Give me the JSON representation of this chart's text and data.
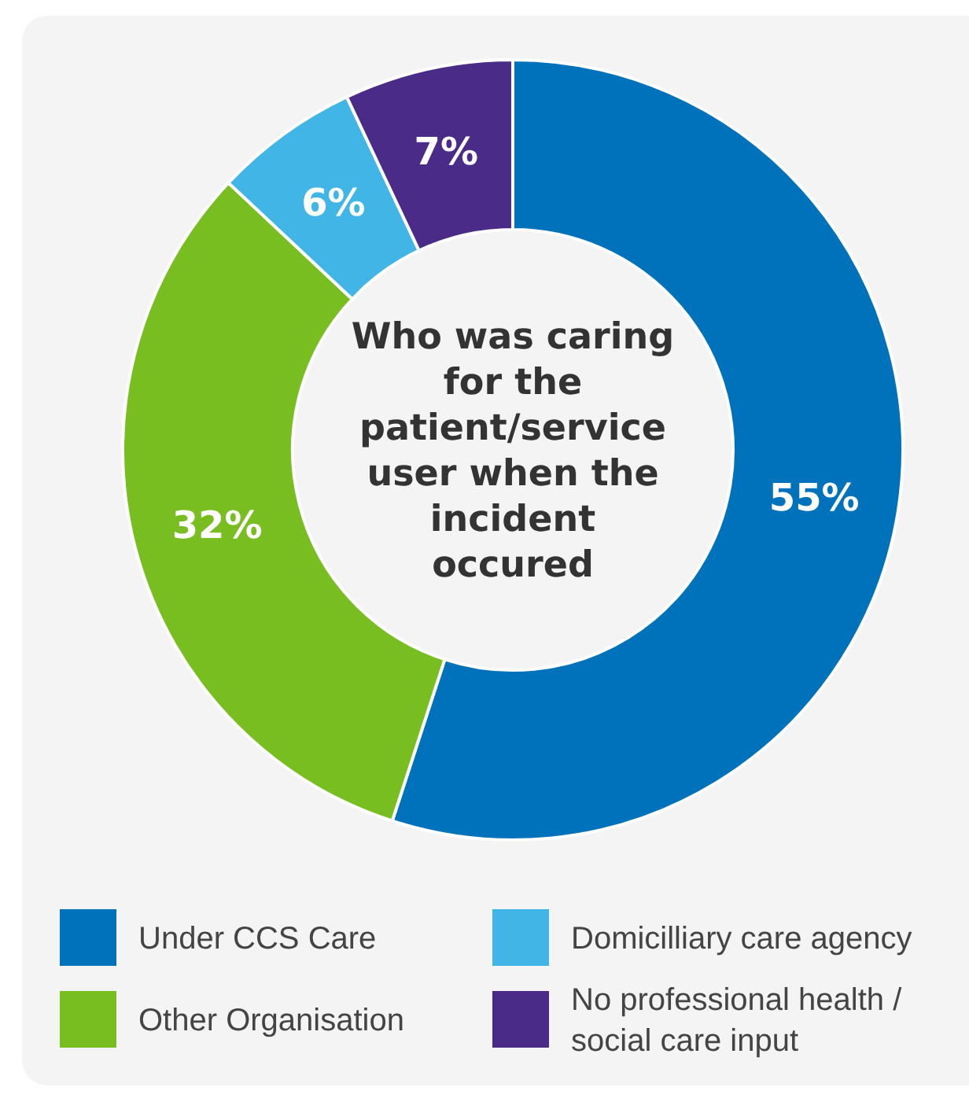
{
  "chart_data": {
    "type": "donut",
    "title": "Who was caring for the patient/service user when the incident occured",
    "categories": [
      "Under CCS Care",
      "Other Organisation",
      "Domicilliary care agency",
      "No professional health / social care input"
    ],
    "values": [
      55,
      32,
      6,
      7
    ],
    "colors": [
      "#0072bc",
      "#78be20",
      "#41b6e6",
      "#4a2c88"
    ],
    "value_labels": [
      "55%",
      "32%",
      "6%",
      "7%"
    ],
    "legend": "bottom"
  }
}
